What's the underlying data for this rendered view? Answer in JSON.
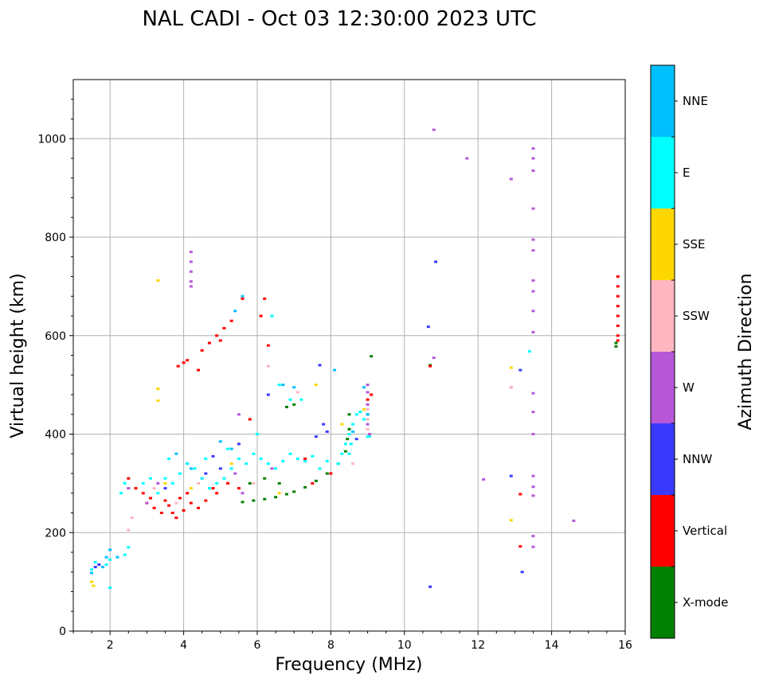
{
  "chart_data": {
    "type": "scatter",
    "title": "NAL CADI - Oct 03 12:30:00 2023 UTC",
    "xlabel": "Frequency (MHz)",
    "ylabel": "Virtual height (km)",
    "xlim": [
      1,
      16
    ],
    "ylim": [
      0,
      1120
    ],
    "xticks": [
      2,
      4,
      6,
      8,
      10,
      12,
      14,
      16
    ],
    "yticks": [
      0,
      200,
      400,
      600,
      800,
      1000
    ],
    "grid": true,
    "colorbar": {
      "label": "Azimuth Direction",
      "categories": [
        {
          "name": "X-mode",
          "color": "#008000"
        },
        {
          "name": "Vertical",
          "color": "#ff0000"
        },
        {
          "name": "NNW",
          "color": "#3a3aff"
        },
        {
          "name": "W",
          "color": "#b657d8"
        },
        {
          "name": "SSW",
          "color": "#ffb6c1"
        },
        {
          "name": "SSE",
          "color": "#ffd700"
        },
        {
          "name": "E",
          "color": "#00ffff"
        },
        {
          "name": "NNE",
          "color": "#00bfff"
        }
      ]
    },
    "series": [
      {
        "name": "X-mode",
        "points": [
          [
            5.6,
            262
          ],
          [
            5.9,
            265
          ],
          [
            6.2,
            268
          ],
          [
            6.5,
            272
          ],
          [
            6.8,
            278
          ],
          [
            7.0,
            283
          ],
          [
            7.3,
            292
          ],
          [
            7.6,
            305
          ],
          [
            7.9,
            320
          ],
          [
            8.2,
            340
          ],
          [
            8.4,
            365
          ],
          [
            8.45,
            390
          ],
          [
            8.5,
            410
          ],
          [
            8.5,
            440
          ],
          [
            6.8,
            455
          ],
          [
            7.0,
            460
          ],
          [
            6.6,
            300
          ],
          [
            6.2,
            310
          ],
          [
            5.8,
            300
          ],
          [
            15.75,
            585
          ],
          [
            15.75,
            578
          ],
          [
            9.1,
            558
          ],
          [
            10.7,
            540
          ]
        ]
      },
      {
        "name": "Vertical",
        "points": [
          [
            3.2,
            250
          ],
          [
            3.4,
            240
          ],
          [
            3.6,
            255
          ],
          [
            3.8,
            230
          ],
          [
            4.0,
            245
          ],
          [
            4.2,
            260
          ],
          [
            3.9,
            270
          ],
          [
            3.5,
            265
          ],
          [
            3.1,
            270
          ],
          [
            3.0,
            260
          ],
          [
            4.4,
            250
          ],
          [
            4.6,
            265
          ],
          [
            4.9,
            280
          ],
          [
            5.2,
            300
          ],
          [
            5.5,
            290
          ],
          [
            4.8,
            290
          ],
          [
            4.1,
            280
          ],
          [
            3.7,
            240
          ],
          [
            2.5,
            310
          ],
          [
            2.7,
            290
          ],
          [
            2.9,
            280
          ],
          [
            3.85,
            538
          ],
          [
            4.0,
            545
          ],
          [
            4.1,
            550
          ],
          [
            4.5,
            570
          ],
          [
            4.7,
            585
          ],
          [
            4.9,
            600
          ],
          [
            5.1,
            615
          ],
          [
            5.3,
            630
          ],
          [
            5.0,
            590
          ],
          [
            4.4,
            530
          ],
          [
            5.6,
            675
          ],
          [
            6.2,
            675
          ],
          [
            6.1,
            640
          ],
          [
            5.8,
            430
          ],
          [
            6.3,
            580
          ],
          [
            7.3,
            350
          ],
          [
            7.5,
            300
          ],
          [
            8.0,
            320
          ],
          [
            9.0,
            470
          ],
          [
            9.1,
            480
          ],
          [
            10.7,
            538
          ],
          [
            13.15,
            278
          ],
          [
            13.15,
            172
          ],
          [
            15.8,
            720
          ],
          [
            15.8,
            700
          ],
          [
            15.8,
            680
          ],
          [
            15.8,
            660
          ],
          [
            15.8,
            640
          ],
          [
            15.8,
            620
          ],
          [
            15.8,
            600
          ],
          [
            15.8,
            590
          ]
        ]
      },
      {
        "name": "NNW",
        "points": [
          [
            1.6,
            130
          ],
          [
            1.7,
            135
          ],
          [
            3.5,
            290
          ],
          [
            4.1,
            340
          ],
          [
            4.6,
            320
          ],
          [
            5.0,
            330
          ],
          [
            5.5,
            380
          ],
          [
            6.3,
            480
          ],
          [
            7.7,
            540
          ],
          [
            7.8,
            420
          ],
          [
            7.9,
            405
          ],
          [
            7.6,
            395
          ],
          [
            8.7,
            390
          ],
          [
            9.0,
            440
          ],
          [
            10.7,
            90
          ],
          [
            10.65,
            618
          ],
          [
            10.85,
            750
          ],
          [
            12.9,
            315
          ],
          [
            13.15,
            530
          ],
          [
            13.2,
            120
          ],
          [
            4.8,
            355
          ]
        ]
      },
      {
        "name": "W",
        "points": [
          [
            4.2,
            770
          ],
          [
            4.2,
            750
          ],
          [
            4.2,
            730
          ],
          [
            4.2,
            710
          ],
          [
            4.2,
            700
          ],
          [
            2.5,
            290
          ],
          [
            3.0,
            260
          ],
          [
            3.3,
            300
          ],
          [
            4.5,
            310
          ],
          [
            5.4,
            320
          ],
          [
            5.6,
            280
          ],
          [
            6.4,
            330
          ],
          [
            9.0,
            500
          ],
          [
            9.0,
            485
          ],
          [
            9.0,
            460
          ],
          [
            9.05,
            400
          ],
          [
            9.0,
            420
          ],
          [
            10.8,
            555
          ],
          [
            10.8,
            1018
          ],
          [
            11.7,
            960
          ],
          [
            12.9,
            918
          ],
          [
            13.5,
            980
          ],
          [
            13.5,
            960
          ],
          [
            13.5,
            935
          ],
          [
            13.5,
            858
          ],
          [
            13.5,
            795
          ],
          [
            13.5,
            773
          ],
          [
            13.5,
            712
          ],
          [
            13.5,
            690
          ],
          [
            13.5,
            650
          ],
          [
            13.5,
            607
          ],
          [
            13.5,
            483
          ],
          [
            13.5,
            445
          ],
          [
            13.5,
            400
          ],
          [
            13.5,
            315
          ],
          [
            13.5,
            293
          ],
          [
            13.5,
            275
          ],
          [
            13.5,
            193
          ],
          [
            13.5,
            171
          ],
          [
            12.15,
            308
          ],
          [
            12.9,
            495
          ],
          [
            14.6,
            224
          ],
          [
            5.5,
            440
          ]
        ]
      },
      {
        "name": "SSW",
        "points": [
          [
            2.5,
            205
          ],
          [
            2.6,
            230
          ],
          [
            3.2,
            290
          ],
          [
            3.8,
            260
          ],
          [
            4.4,
            300
          ],
          [
            5.1,
            310
          ],
          [
            5.9,
            300
          ],
          [
            6.3,
            538
          ],
          [
            7.1,
            485
          ],
          [
            8.6,
            340
          ],
          [
            9.0,
            450
          ],
          [
            9.0,
            430
          ],
          [
            9.0,
            410
          ],
          [
            12.9,
            495
          ]
        ]
      },
      {
        "name": "SSE",
        "points": [
          [
            1.5,
            100
          ],
          [
            1.55,
            92
          ],
          [
            3.3,
            712
          ],
          [
            3.3,
            492
          ],
          [
            3.3,
            468
          ],
          [
            3.5,
            300
          ],
          [
            4.2,
            290
          ],
          [
            5.3,
            340
          ],
          [
            6.6,
            280
          ],
          [
            7.6,
            500
          ],
          [
            8.3,
            420
          ],
          [
            8.9,
            450
          ],
          [
            12.9,
            535
          ],
          [
            12.9,
            225
          ]
        ]
      },
      {
        "name": "E",
        "points": [
          [
            1.5,
            125
          ],
          [
            1.6,
            140
          ],
          [
            1.9,
            135
          ],
          [
            2.0,
            145
          ],
          [
            2.0,
            88
          ],
          [
            2.4,
            155
          ],
          [
            2.5,
            170
          ],
          [
            2.3,
            280
          ],
          [
            2.4,
            300
          ],
          [
            2.9,
            300
          ],
          [
            3.1,
            310
          ],
          [
            3.3,
            280
          ],
          [
            3.5,
            310
          ],
          [
            3.7,
            300
          ],
          [
            3.9,
            320
          ],
          [
            4.1,
            340
          ],
          [
            4.3,
            330
          ],
          [
            4.5,
            310
          ],
          [
            4.7,
            290
          ],
          [
            4.9,
            300
          ],
          [
            5.1,
            310
          ],
          [
            5.3,
            330
          ],
          [
            5.5,
            350
          ],
          [
            5.7,
            340
          ],
          [
            5.9,
            360
          ],
          [
            6.1,
            350
          ],
          [
            6.3,
            340
          ],
          [
            6.5,
            330
          ],
          [
            6.7,
            345
          ],
          [
            6.9,
            360
          ],
          [
            7.1,
            350
          ],
          [
            7.3,
            345
          ],
          [
            7.5,
            355
          ],
          [
            7.7,
            330
          ],
          [
            7.9,
            345
          ],
          [
            8.2,
            340
          ],
          [
            8.3,
            360
          ],
          [
            8.4,
            380
          ],
          [
            8.5,
            400
          ],
          [
            8.6,
            420
          ],
          [
            8.7,
            440
          ],
          [
            8.8,
            445
          ],
          [
            8.9,
            430
          ],
          [
            9.05,
            395
          ],
          [
            6.6,
            500
          ],
          [
            7.2,
            470
          ],
          [
            6.9,
            470
          ],
          [
            6.4,
            640
          ],
          [
            6.0,
            400
          ],
          [
            5.2,
            370
          ],
          [
            4.6,
            350
          ],
          [
            3.6,
            350
          ],
          [
            13.4,
            568
          ],
          [
            8.55,
            380
          ],
          [
            8.5,
            360
          ],
          [
            9.0,
            395
          ]
        ]
      },
      {
        "name": "NNE",
        "points": [
          [
            1.5,
            118
          ],
          [
            1.8,
            130
          ],
          [
            1.9,
            150
          ],
          [
            2.0,
            165
          ],
          [
            2.2,
            150
          ],
          [
            3.8,
            360
          ],
          [
            4.2,
            330
          ],
          [
            5.0,
            385
          ],
          [
            5.3,
            370
          ],
          [
            5.4,
            650
          ],
          [
            5.6,
            680
          ],
          [
            6.7,
            500
          ],
          [
            7.0,
            495
          ],
          [
            8.1,
            530
          ],
          [
            8.9,
            495
          ],
          [
            9.0,
            440
          ],
          [
            8.6,
            405
          ]
        ]
      }
    ]
  }
}
